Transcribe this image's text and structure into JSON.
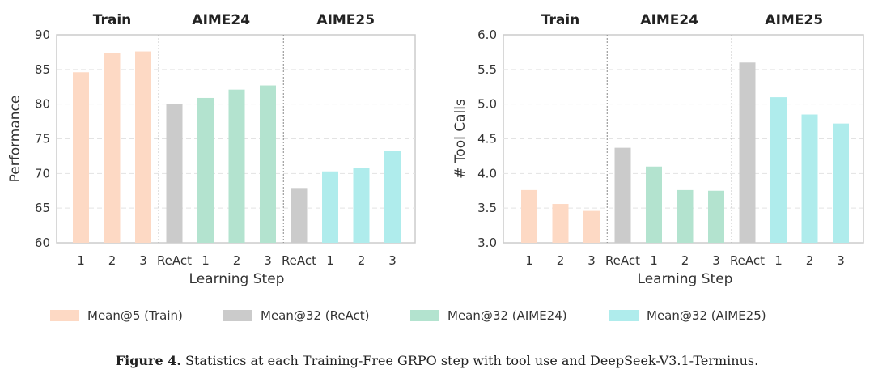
{
  "colors": {
    "train": "#fdd9c4",
    "react": "#cbcbcb",
    "aime24": "#b3e3cf",
    "aime25": "#afecec"
  },
  "legend": [
    {
      "label": "Mean@5 (Train)",
      "color": "#fdd9c4"
    },
    {
      "label": "Mean@32 (ReAct)",
      "color": "#cbcbcb"
    },
    {
      "label": "Mean@32 (AIME24)",
      "color": "#b3e3cf"
    },
    {
      "label": "Mean@32 (AIME25)",
      "color": "#afecec"
    }
  ],
  "caption": {
    "label": "Figure 4.",
    "text": "Statistics at each Training-Free GRPO step with tool use and DeepSeek-V3.1-Terminus."
  },
  "chart_data": [
    {
      "type": "bar",
      "xlabel": "Learning Step",
      "ylabel": "Performance",
      "ylim": [
        60,
        90
      ],
      "yticks": [
        "60",
        "65",
        "70",
        "75",
        "80",
        "85",
        "90"
      ],
      "grid": true,
      "groups": [
        {
          "title": "Train",
          "series": "Mean@5 (Train)",
          "bars": [
            {
              "label": "1",
              "value": 84.6,
              "color": "#fdd9c4"
            },
            {
              "label": "2",
              "value": 87.4,
              "color": "#fdd9c4"
            },
            {
              "label": "3",
              "value": 87.6,
              "color": "#fdd9c4"
            }
          ]
        },
        {
          "title": "AIME24",
          "series": "Mean@32 (AIME24)",
          "bars": [
            {
              "label": "ReAct",
              "value": 80.0,
              "color": "#cbcbcb"
            },
            {
              "label": "1",
              "value": 80.9,
              "color": "#b3e3cf"
            },
            {
              "label": "2",
              "value": 82.1,
              "color": "#b3e3cf"
            },
            {
              "label": "3",
              "value": 82.7,
              "color": "#b3e3cf"
            }
          ]
        },
        {
          "title": "AIME25",
          "series": "Mean@32 (AIME25)",
          "bars": [
            {
              "label": "ReAct",
              "value": 67.9,
              "color": "#cbcbcb"
            },
            {
              "label": "1",
              "value": 70.3,
              "color": "#afecec"
            },
            {
              "label": "2",
              "value": 70.8,
              "color": "#afecec"
            },
            {
              "label": "3",
              "value": 73.3,
              "color": "#afecec"
            }
          ]
        }
      ]
    },
    {
      "type": "bar",
      "xlabel": "Learning Step",
      "ylabel": "# Tool Calls",
      "ylim": [
        3.0,
        6.0
      ],
      "yticks": [
        "3.0",
        "3.5",
        "4.0",
        "4.5",
        "5.0",
        "5.5",
        "6.0"
      ],
      "grid": true,
      "groups": [
        {
          "title": "Train",
          "series": "Mean@5 (Train)",
          "bars": [
            {
              "label": "1",
              "value": 3.76,
              "color": "#fdd9c4"
            },
            {
              "label": "2",
              "value": 3.56,
              "color": "#fdd9c4"
            },
            {
              "label": "3",
              "value": 3.46,
              "color": "#fdd9c4"
            }
          ]
        },
        {
          "title": "AIME24",
          "series": "Mean@32 (AIME24)",
          "bars": [
            {
              "label": "ReAct",
              "value": 4.37,
              "color": "#cbcbcb"
            },
            {
              "label": "1",
              "value": 4.1,
              "color": "#b3e3cf"
            },
            {
              "label": "2",
              "value": 3.76,
              "color": "#b3e3cf"
            },
            {
              "label": "3",
              "value": 3.75,
              "color": "#b3e3cf"
            }
          ]
        },
        {
          "title": "AIME25",
          "series": "Mean@32 (AIME25)",
          "bars": [
            {
              "label": "ReAct",
              "value": 5.6,
              "color": "#cbcbcb"
            },
            {
              "label": "1",
              "value": 5.1,
              "color": "#afecec"
            },
            {
              "label": "2",
              "value": 4.85,
              "color": "#afecec"
            },
            {
              "label": "3",
              "value": 4.72,
              "color": "#afecec"
            }
          ]
        }
      ]
    }
  ]
}
